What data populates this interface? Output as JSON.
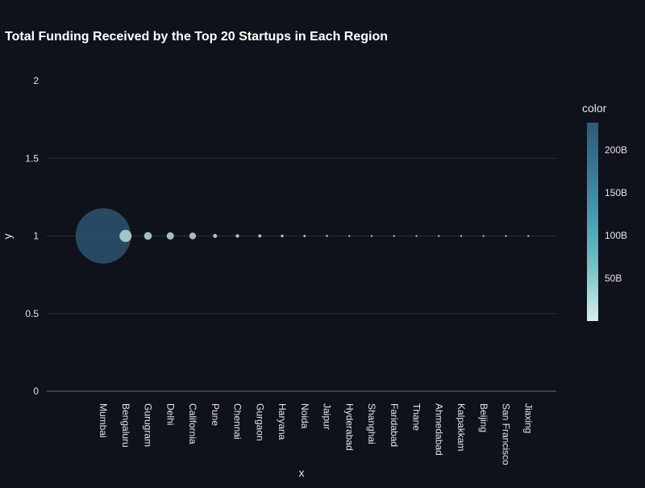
{
  "chart_data": {
    "type": "scatter",
    "title": "Total Funding Received by the Top 20 Startups in Each Region",
    "xlabel": "x",
    "ylabel": "y",
    "ylim": [
      0,
      2
    ],
    "yticks": [
      {
        "value": 0,
        "label": "0"
      },
      {
        "value": 0.5,
        "label": "0.5"
      },
      {
        "value": 1,
        "label": "1"
      },
      {
        "value": 1.5,
        "label": "1.5"
      },
      {
        "value": 2,
        "label": "2"
      }
    ],
    "grid": true,
    "categories": [
      "Mumbai",
      "Bengaluru",
      "Gurugram",
      "Delhi",
      "California",
      "Pune",
      "Chennai",
      "Gurgaon",
      "Haryana",
      "Noida",
      "Jaipur",
      "Hyderabad",
      "Shanghai",
      "Faridabad",
      "Thane",
      "Ahmedabad",
      "Kalpakkam",
      "Beijing",
      "San Francisco",
      "Jiaxing"
    ],
    "y": [
      1,
      1,
      1,
      1,
      1,
      1,
      1,
      1,
      1,
      1,
      1,
      1,
      1,
      1,
      1,
      1,
      1,
      1,
      1,
      1
    ],
    "color_values": [
      230000000000,
      11000000000,
      4500000000,
      4000000000,
      3300000000,
      1200000000,
      900000000,
      700000000,
      500000000,
      400000000,
      300000000,
      250000000,
      200000000,
      180000000,
      150000000,
      120000000,
      100000000,
      80000000,
      60000000,
      40000000
    ],
    "colorbar": {
      "title": "color",
      "min": 0,
      "max": 232000000000,
      "ticks": [
        {
          "value": 50000000000,
          "label": "50B"
        },
        {
          "value": 100000000000,
          "label": "100B"
        },
        {
          "value": 150000000000,
          "label": "150B"
        },
        {
          "value": 200000000000,
          "label": "200B"
        }
      ],
      "colors": [
        "#d8efec",
        "#7cc5c8",
        "#4a9fb3",
        "#3b7896",
        "#2f5878"
      ]
    }
  }
}
